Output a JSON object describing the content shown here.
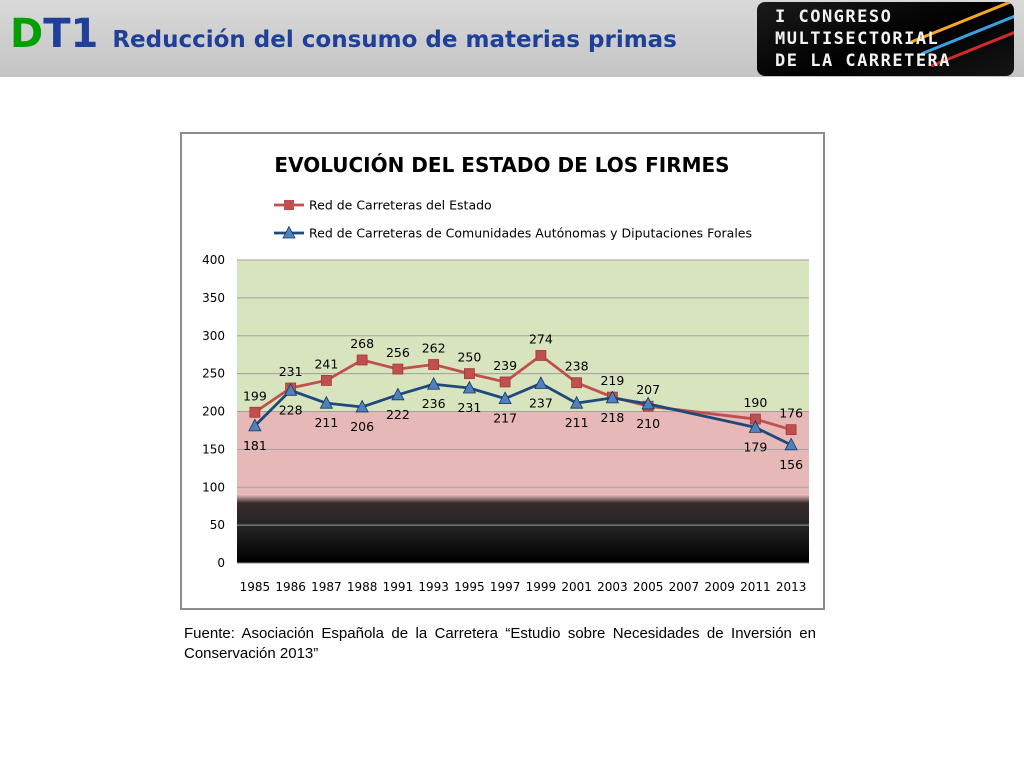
{
  "header": {
    "code_d": "D",
    "code_t1": "T1",
    "title": "Reducción del consumo de materias primas"
  },
  "logo": {
    "line1": "I CONGRESO",
    "line2": "MULTISECTORIAL",
    "line3": "DE LA CARRETERA"
  },
  "chart_data": {
    "type": "line",
    "title": "EVOLUCIÓN DEL ESTADO DE LOS FIRMES",
    "xlabel": "",
    "ylabel": "",
    "ylim": [
      0,
      400
    ],
    "yticks": [
      0,
      50,
      100,
      150,
      200,
      250,
      300,
      350,
      400
    ],
    "categories": [
      "1985",
      "1986",
      "1987",
      "1988",
      "1991",
      "1993",
      "1995",
      "1997",
      "1999",
      "2001",
      "2003",
      "2005",
      "2007",
      "2009",
      "2011",
      "2013"
    ],
    "grid": true,
    "legend": "top",
    "series": [
      {
        "name": "Red de Carreteras del Estado",
        "color": "#c0504d",
        "marker": "square",
        "values": [
          199,
          231,
          241,
          268,
          256,
          262,
          250,
          239,
          274,
          238,
          219,
          207,
          null,
          null,
          190,
          176
        ],
        "labels": [
          "199",
          "231",
          "241",
          "268",
          "256",
          "262",
          "250",
          "239",
          "274",
          "238",
          "219",
          "207",
          "",
          "",
          "190",
          "176"
        ]
      },
      {
        "name": "Red de Carreteras de Comunidades Autónomas y Diputaciones Forales",
        "color": "#1f497d",
        "marker": "triangle",
        "values": [
          181,
          228,
          211,
          206,
          222,
          236,
          231,
          217,
          237,
          211,
          218,
          210,
          null,
          null,
          179,
          156
        ],
        "labels": [
          "181",
          "228",
          "211",
          "206",
          "222",
          "236",
          "231",
          "217",
          "237",
          "211",
          "218",
          "210",
          "",
          "",
          "179",
          "156"
        ]
      }
    ],
    "bands": [
      {
        "name": "green-band",
        "from": 200,
        "to": 400,
        "color": "#d7e4bd"
      },
      {
        "name": "pink-band",
        "from": 90,
        "to": 200,
        "color": "#e6b9b8"
      },
      {
        "name": "dark-band",
        "from": 0,
        "to": 90,
        "color": "#1a1a1a"
      }
    ]
  },
  "caption": "Fuente: Asociación Española de la Carretera “Estudio sobre Necesidades de Inversión en Conservación 2013”"
}
